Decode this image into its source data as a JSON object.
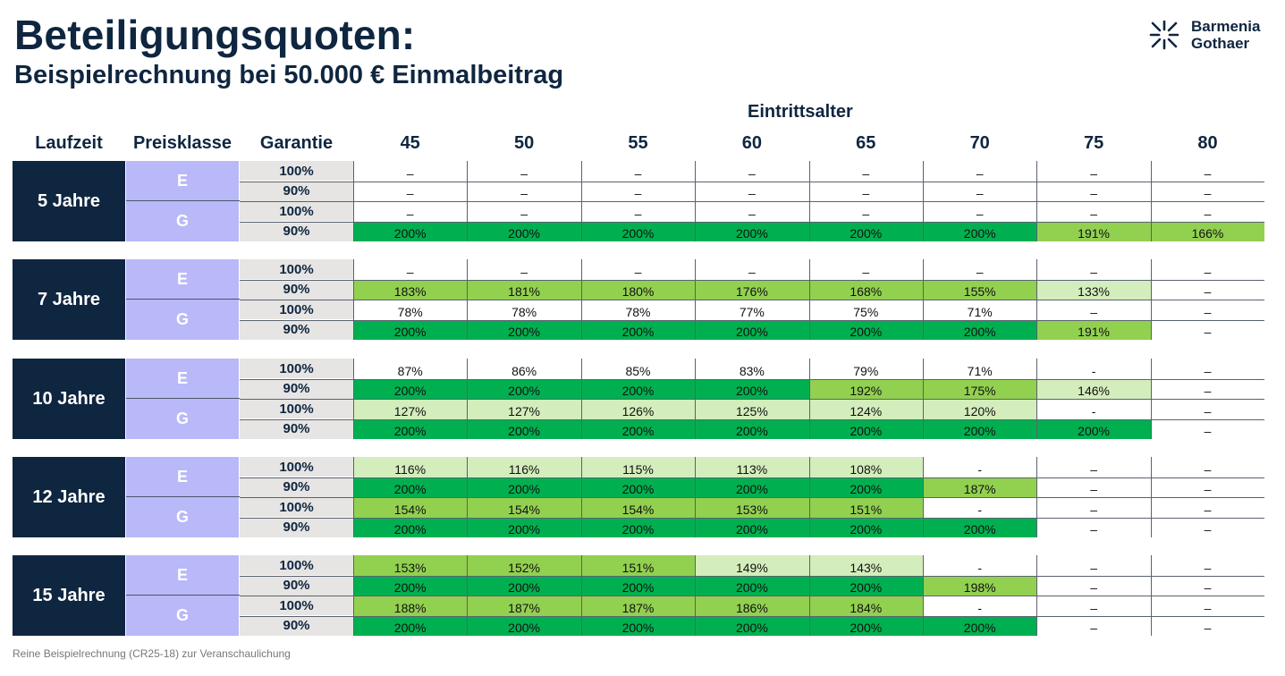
{
  "header": {
    "title": "Beteiligungsquoten:",
    "subtitle": "Beispielrechnung bei 50.000 € Einmalbeitrag",
    "logo_line1": "Barmenia",
    "logo_line2": "Gothaer"
  },
  "columns": {
    "laufzeit": "Laufzeit",
    "preisklasse": "Preisklasse",
    "garantie": "Garantie",
    "group_label": "Eintrittsalter",
    "ages": [
      "45",
      "50",
      "55",
      "60",
      "65",
      "70",
      "75",
      "80"
    ]
  },
  "colors": {
    "navy": "#0f2640",
    "lavender": "#b9b8f8",
    "grey_cell": "#e6e5e3",
    "dark_green": "#00b050",
    "mid_green": "#92d050",
    "light_green": "#d4edbc"
  },
  "footer": "Reine Beispielrechnung (CR25-18) zur Veranschaulichung",
  "chart_data": {
    "type": "table",
    "title": "Beteiligungsquoten: Beispielrechnung bei 50.000 € Einmalbeitrag",
    "column_group": "Eintrittsalter",
    "columns": [
      "45",
      "50",
      "55",
      "60",
      "65",
      "70",
      "75",
      "80"
    ],
    "blocks": [
      {
        "laufzeit": "5 Jahre",
        "rows": [
          {
            "preisklasse": "E",
            "garantie": "100%",
            "values": [
              "–",
              "–",
              "–",
              "–",
              "–",
              "–",
              "–",
              "–"
            ],
            "shade": [
              "w",
              "w",
              "w",
              "w",
              "w",
              "w",
              "w",
              "w"
            ]
          },
          {
            "preisklasse": "E",
            "garantie": "90%",
            "values": [
              "–",
              "–",
              "–",
              "–",
              "–",
              "–",
              "–",
              "–"
            ],
            "shade": [
              "w",
              "w",
              "w",
              "w",
              "w",
              "w",
              "w",
              "w"
            ]
          },
          {
            "preisklasse": "G",
            "garantie": "100%",
            "values": [
              "–",
              "–",
              "–",
              "–",
              "–",
              "–",
              "–",
              "–"
            ],
            "shade": [
              "w",
              "w",
              "w",
              "w",
              "w",
              "w",
              "w",
              "w"
            ]
          },
          {
            "preisklasse": "G",
            "garantie": "90%",
            "values": [
              "200%",
              "200%",
              "200%",
              "200%",
              "200%",
              "200%",
              "191%",
              "166%"
            ],
            "shade": [
              "d",
              "d",
              "d",
              "d",
              "d",
              "d",
              "m",
              "m"
            ]
          }
        ]
      },
      {
        "laufzeit": "7 Jahre",
        "rows": [
          {
            "preisklasse": "E",
            "garantie": "100%",
            "values": [
              "–",
              "–",
              "–",
              "–",
              "–",
              "–",
              "–",
              "–"
            ],
            "shade": [
              "w",
              "w",
              "w",
              "w",
              "w",
              "w",
              "w",
              "w"
            ]
          },
          {
            "preisklasse": "E",
            "garantie": "90%",
            "values": [
              "183%",
              "181%",
              "180%",
              "176%",
              "168%",
              "155%",
              "133%",
              "–"
            ],
            "shade": [
              "m",
              "m",
              "m",
              "m",
              "m",
              "m",
              "l",
              "w"
            ]
          },
          {
            "preisklasse": "G",
            "garantie": "100%",
            "values": [
              "78%",
              "78%",
              "78%",
              "77%",
              "75%",
              "71%",
              "–",
              "–"
            ],
            "shade": [
              "w",
              "w",
              "w",
              "w",
              "w",
              "w",
              "w",
              "w"
            ]
          },
          {
            "preisklasse": "G",
            "garantie": "90%",
            "values": [
              "200%",
              "200%",
              "200%",
              "200%",
              "200%",
              "200%",
              "191%",
              "–"
            ],
            "shade": [
              "d",
              "d",
              "d",
              "d",
              "d",
              "d",
              "m",
              "w"
            ]
          }
        ]
      },
      {
        "laufzeit": "10 Jahre",
        "rows": [
          {
            "preisklasse": "E",
            "garantie": "100%",
            "values": [
              "87%",
              "86%",
              "85%",
              "83%",
              "79%",
              "71%",
              "-",
              "–"
            ],
            "shade": [
              "w",
              "w",
              "w",
              "w",
              "w",
              "w",
              "w",
              "w"
            ]
          },
          {
            "preisklasse": "E",
            "garantie": "90%",
            "values": [
              "200%",
              "200%",
              "200%",
              "200%",
              "192%",
              "175%",
              "146%",
              "–"
            ],
            "shade": [
              "d",
              "d",
              "d",
              "d",
              "m",
              "m",
              "l",
              "w"
            ]
          },
          {
            "preisklasse": "G",
            "garantie": "100%",
            "values": [
              "127%",
              "127%",
              "126%",
              "125%",
              "124%",
              "120%",
              "-",
              "–"
            ],
            "shade": [
              "l",
              "l",
              "l",
              "l",
              "l",
              "l",
              "w",
              "w"
            ]
          },
          {
            "preisklasse": "G",
            "garantie": "90%",
            "values": [
              "200%",
              "200%",
              "200%",
              "200%",
              "200%",
              "200%",
              "200%",
              "–"
            ],
            "shade": [
              "d",
              "d",
              "d",
              "d",
              "d",
              "d",
              "d",
              "w"
            ]
          }
        ]
      },
      {
        "laufzeit": "12 Jahre",
        "rows": [
          {
            "preisklasse": "E",
            "garantie": "100%",
            "values": [
              "116%",
              "116%",
              "115%",
              "113%",
              "108%",
              "-",
              "–",
              "–"
            ],
            "shade": [
              "l",
              "l",
              "l",
              "l",
              "l",
              "w",
              "w",
              "w"
            ]
          },
          {
            "preisklasse": "E",
            "garantie": "90%",
            "values": [
              "200%",
              "200%",
              "200%",
              "200%",
              "200%",
              "187%",
              "–",
              "–"
            ],
            "shade": [
              "d",
              "d",
              "d",
              "d",
              "d",
              "m",
              "w",
              "w"
            ]
          },
          {
            "preisklasse": "G",
            "garantie": "100%",
            "values": [
              "154%",
              "154%",
              "154%",
              "153%",
              "151%",
              "-",
              "–",
              "–"
            ],
            "shade": [
              "m",
              "m",
              "m",
              "m",
              "m",
              "w",
              "w",
              "w"
            ]
          },
          {
            "preisklasse": "G",
            "garantie": "90%",
            "values": [
              "200%",
              "200%",
              "200%",
              "200%",
              "200%",
              "200%",
              "–",
              "–"
            ],
            "shade": [
              "d",
              "d",
              "d",
              "d",
              "d",
              "d",
              "w",
              "w"
            ]
          }
        ]
      },
      {
        "laufzeit": "15 Jahre",
        "rows": [
          {
            "preisklasse": "E",
            "garantie": "100%",
            "values": [
              "153%",
              "152%",
              "151%",
              "149%",
              "143%",
              "-",
              "–",
              "–"
            ],
            "shade": [
              "m",
              "m",
              "m",
              "l",
              "l",
              "w",
              "w",
              "w"
            ]
          },
          {
            "preisklasse": "E",
            "garantie": "90%",
            "values": [
              "200%",
              "200%",
              "200%",
              "200%",
              "200%",
              "198%",
              "–",
              "–"
            ],
            "shade": [
              "d",
              "d",
              "d",
              "d",
              "d",
              "m",
              "w",
              "w"
            ]
          },
          {
            "preisklasse": "G",
            "garantie": "100%",
            "values": [
              "188%",
              "187%",
              "187%",
              "186%",
              "184%",
              "-",
              "–",
              "–"
            ],
            "shade": [
              "m",
              "m",
              "m",
              "m",
              "m",
              "w",
              "w",
              "w"
            ]
          },
          {
            "preisklasse": "G",
            "garantie": "90%",
            "values": [
              "200%",
              "200%",
              "200%",
              "200%",
              "200%",
              "200%",
              "–",
              "–"
            ],
            "shade": [
              "d",
              "d",
              "d",
              "d",
              "d",
              "d",
              "w",
              "w"
            ]
          }
        ]
      }
    ]
  }
}
